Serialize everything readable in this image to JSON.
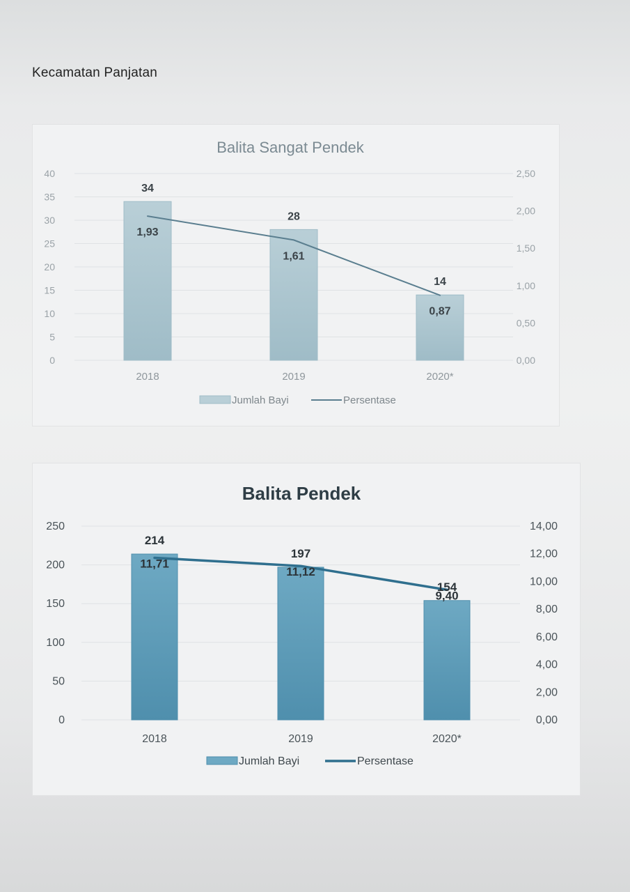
{
  "page": {
    "heading": "Kecamatan Panjatan"
  },
  "chart_data": [
    {
      "type": "bar",
      "title": "Balita Sangat Pendek",
      "categories": [
        "2018",
        "2019",
        "2020*"
      ],
      "series": [
        {
          "name": "Jumlah Bayi",
          "type": "bar",
          "axis": "left",
          "values": [
            34,
            28,
            14
          ]
        },
        {
          "name": "Persentase",
          "type": "line",
          "axis": "right",
          "values": [
            1.93,
            1.61,
            0.87
          ]
        }
      ],
      "bar_labels": [
        "34",
        "28",
        "14"
      ],
      "line_labels": [
        "1,93",
        "1,61",
        "0,87"
      ],
      "left_axis": {
        "ylim": [
          0,
          40
        ],
        "ticks": [
          "0",
          "5",
          "10",
          "15",
          "20",
          "25",
          "30",
          "35",
          "40"
        ]
      },
      "right_axis": {
        "ylim": [
          0,
          2.5
        ],
        "ticks": [
          "0,00",
          "0,50",
          "1,00",
          "1,50",
          "2,00",
          "2,50"
        ]
      },
      "legend": {
        "placement": "bottom",
        "items": [
          "Jumlah Bayi",
          "Persentase"
        ]
      },
      "grid": true,
      "colors": {
        "bar": "#b9cfd7",
        "bar_edge": "#9fbcc7",
        "line": "#5a7e8f"
      }
    },
    {
      "type": "bar",
      "title": "Balita Pendek",
      "categories": [
        "2018",
        "2019",
        "2020*"
      ],
      "series": [
        {
          "name": "Jumlah Bayi",
          "type": "bar",
          "axis": "left",
          "values": [
            214,
            197,
            154
          ]
        },
        {
          "name": "Persentase",
          "type": "line",
          "axis": "right",
          "values": [
            11.71,
            11.12,
            9.4
          ]
        }
      ],
      "bar_labels": [
        "214",
        "197",
        "154"
      ],
      "line_labels": [
        "11,71",
        "11,12",
        "9,40"
      ],
      "left_axis": {
        "ylim": [
          0,
          250
        ],
        "ticks": [
          "0",
          "50",
          "100",
          "150",
          "200",
          "250"
        ]
      },
      "right_axis": {
        "ylim": [
          0,
          14
        ],
        "ticks": [
          "0,00",
          "2,00",
          "4,00",
          "6,00",
          "8,00",
          "10,00",
          "12,00",
          "14,00"
        ]
      },
      "legend": {
        "placement": "bottom",
        "items": [
          "Jumlah Bayi",
          "Persentase"
        ]
      },
      "grid": true,
      "colors": {
        "bar": "#6ea9c3",
        "bar_edge": "#4f8fad",
        "line": "#2f6f8e"
      }
    }
  ]
}
